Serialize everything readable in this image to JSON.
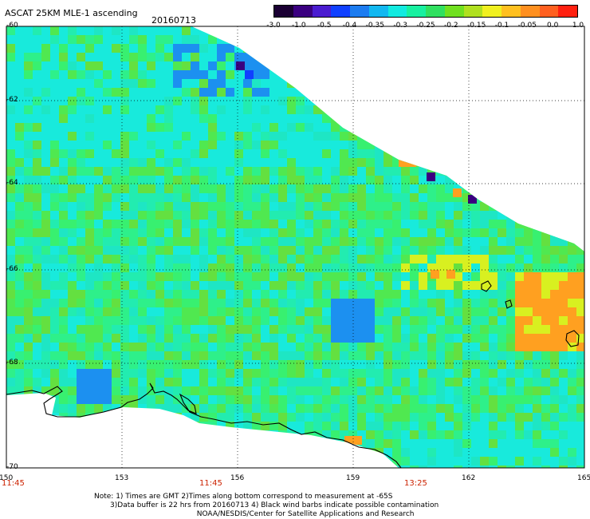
{
  "title": "ASCAT 25KM MLE-1 ascending",
  "date": "20160713",
  "colorbar": {
    "labels": [
      "-3.0",
      "-1.0",
      "-0.5",
      "-0.4",
      "-0.35",
      "-0.3",
      "-0.25",
      "-0.2",
      "-0.15",
      "-0.1",
      "-0.05",
      "0.0",
      "1.0"
    ],
    "colors": [
      "#1a0033",
      "#3a0080",
      "#4a1cd0",
      "#1040ff",
      "#1c7cf0",
      "#12b8f0",
      "#12eae0",
      "#18f0a0",
      "#30e060",
      "#70e020",
      "#b0e020",
      "#f0f020",
      "#ffc020",
      "#ff9020",
      "#ff6020",
      "#ff2010"
    ]
  },
  "map": {
    "lon_ticks": [
      "150",
      "153",
      "156",
      "159",
      "162",
      "165"
    ],
    "lat_ticks": [
      "-60",
      "-62",
      "-64",
      "-66",
      "-68",
      "-70"
    ],
    "time_labels": [
      "11:45",
      "11:45",
      "13:25"
    ],
    "colors": {
      "base": "#2ef08a",
      "cyan": "#18eadc",
      "blue": "#1c90f0",
      "deep_blue": "#1040ff",
      "purple": "#3a0080",
      "yellow": "#d8f020",
      "orange": "#ffa020",
      "coast": "#000000"
    }
  },
  "notes": {
    "line1": "Note: 1) Times are GMT 2)Times along bottom correspond to measurement at -65S",
    "line2": "3)Data buffer is 22 hrs from 20160713 4) Black wind barbs indicate possible contamination",
    "line3": "NOAA/NESDIS/Center for Satellite Applications and Research"
  }
}
